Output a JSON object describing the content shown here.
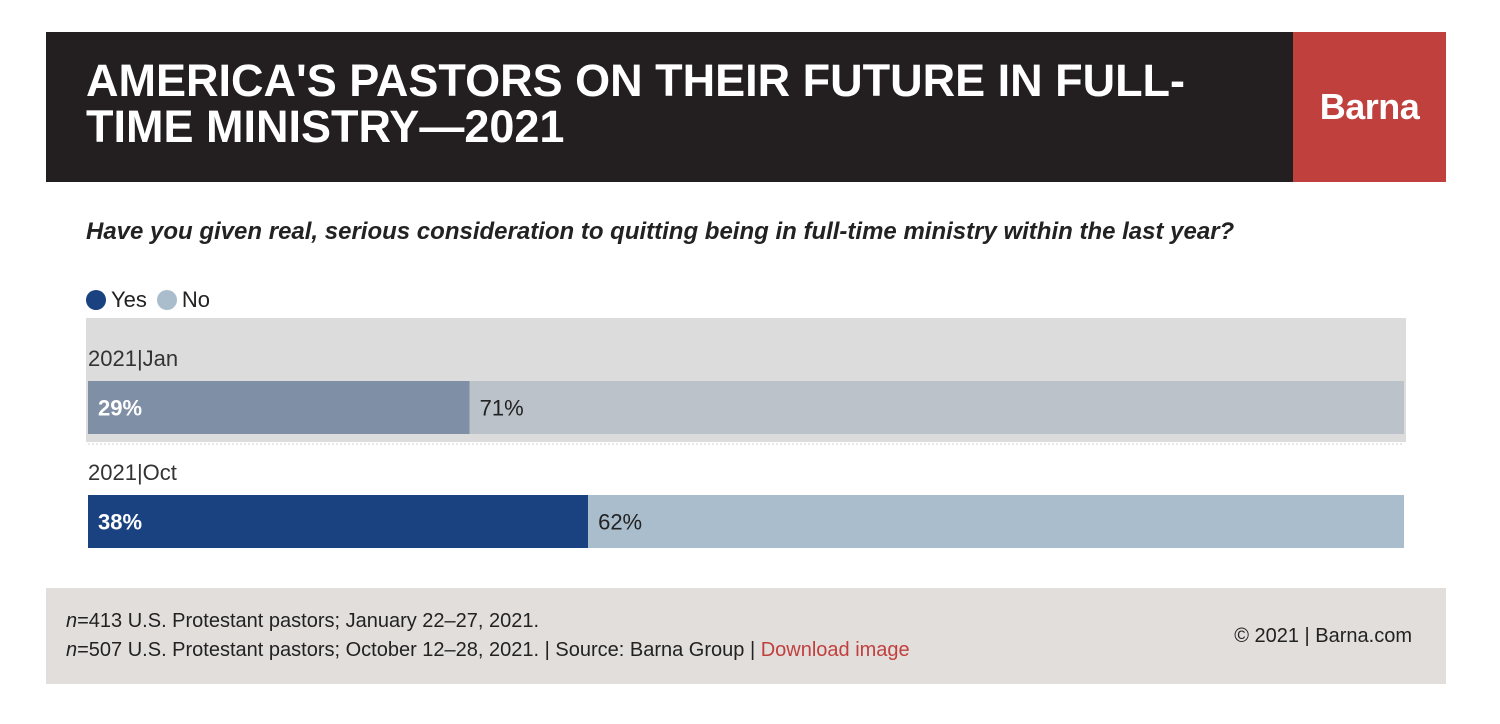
{
  "header": {
    "title": "AMERICA'S PASTORS ON THEIR FUTURE IN FULL-TIME MINISTRY—2021",
    "logo": "Barna",
    "logo_bg": "#c0403e",
    "bg": "#231f20"
  },
  "question": "Have you given real, serious consideration to quitting being in full-time ministry within the last year?",
  "chart_data": {
    "type": "bar",
    "orientation": "horizontal",
    "stacked": true,
    "percent": true,
    "xlim": [
      0,
      100
    ],
    "legend": {
      "placement": "top-left",
      "entries": [
        "Yes",
        "No"
      ]
    },
    "categories": [
      "2021|Jan",
      "2021|Oct"
    ],
    "series": [
      {
        "name": "Yes",
        "values": [
          29,
          38
        ],
        "labels": [
          "29%",
          "38%"
        ],
        "colors": [
          "#7f8fa6",
          "#1a4180"
        ]
      },
      {
        "name": "No",
        "values": [
          71,
          62
        ],
        "labels": [
          "71%",
          "62%"
        ],
        "colors": [
          "#bbc2ca",
          "#a9bdcc"
        ]
      }
    ],
    "legend_colors": [
      "#1a4180",
      "#a9bdcc"
    ]
  },
  "footer": {
    "n1_italic": "n",
    "n1_text": "=413 U.S. Protestant pastors; January 22–27, 2021.",
    "n2_italic": "n",
    "n2_text": "=507 U.S. Protestant pastors; October 12–28, 2021. | Source: Barna Group |",
    "download": "Download image",
    "copyright": "© 2021 |   Barna.com"
  }
}
